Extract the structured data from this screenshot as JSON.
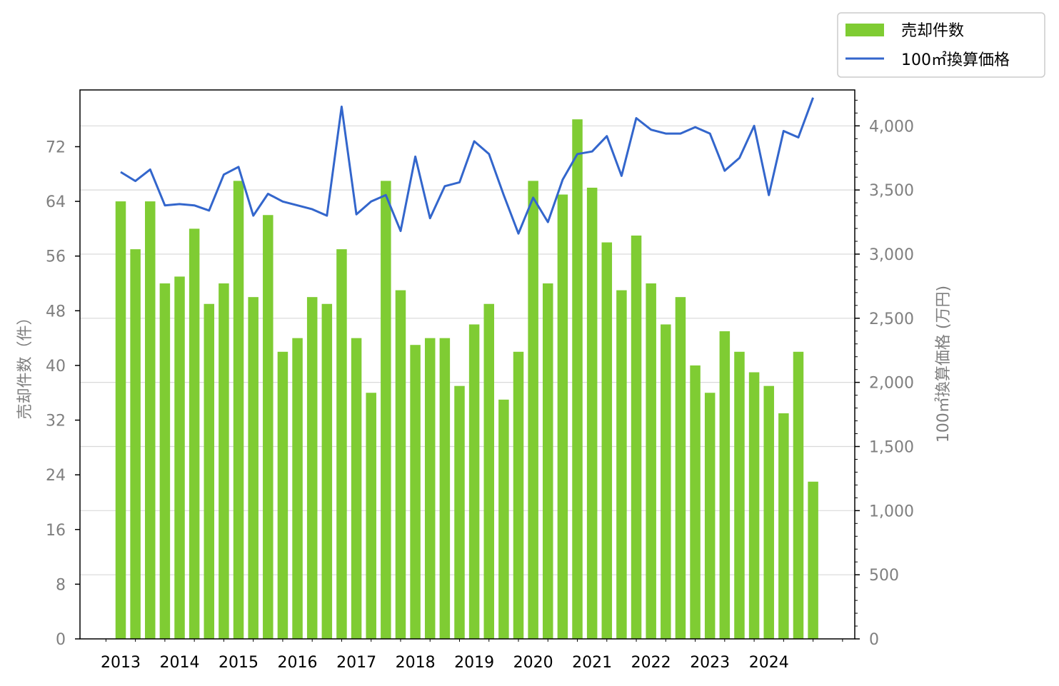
{
  "chart_data": {
    "type": "bar+line",
    "x_ticks": [
      "2013",
      "2014",
      "2015",
      "2016",
      "2017",
      "2018",
      "2019",
      "2020",
      "2021",
      "2022",
      "2023",
      "2024"
    ],
    "ylabel_left": "売却件数（件）",
    "ylabel_right": "100㎡換算価格 (万円)",
    "yticks_left": [
      0,
      8,
      16,
      24,
      32,
      40,
      48,
      56,
      64,
      72
    ],
    "yticks_right": [
      0,
      500,
      1000,
      1500,
      2000,
      2500,
      3000,
      3500,
      4000
    ],
    "ylim_left": [
      0,
      80.3
    ],
    "ylim_right": [
      0,
      4280
    ],
    "grid": "horizontal (right axis)",
    "legend_position": "top-right",
    "series": [
      {
        "name": "売却件数",
        "kind": "bar",
        "axis": "left",
        "color": "#7fcc33",
        "values": [
          64,
          57,
          64,
          52,
          53,
          60,
          49,
          52,
          67,
          50,
          62,
          42,
          44,
          50,
          49,
          57,
          44,
          36,
          67,
          51,
          43,
          44,
          44,
          37,
          46,
          49,
          35,
          42,
          67,
          52,
          65,
          76,
          66,
          58,
          51,
          59,
          52,
          46,
          50,
          40,
          36,
          45,
          42,
          39,
          37,
          33,
          42,
          23
        ]
      },
      {
        "name": "100㎡換算価格",
        "kind": "line",
        "axis": "right",
        "color": "#3366cc",
        "values": [
          3640,
          3570,
          3660,
          3380,
          3390,
          3380,
          3340,
          3620,
          3680,
          3300,
          3470,
          3410,
          3380,
          3350,
          3300,
          4150,
          3310,
          3410,
          3460,
          3180,
          3760,
          3280,
          3530,
          3560,
          3880,
          3780,
          3460,
          3160,
          3440,
          3250,
          3580,
          3780,
          3800,
          3920,
          3610,
          4060,
          3970,
          3940,
          3940,
          3990,
          3940,
          3650,
          3750,
          4000,
          3460,
          3960,
          3910,
          4220
        ]
      }
    ]
  }
}
